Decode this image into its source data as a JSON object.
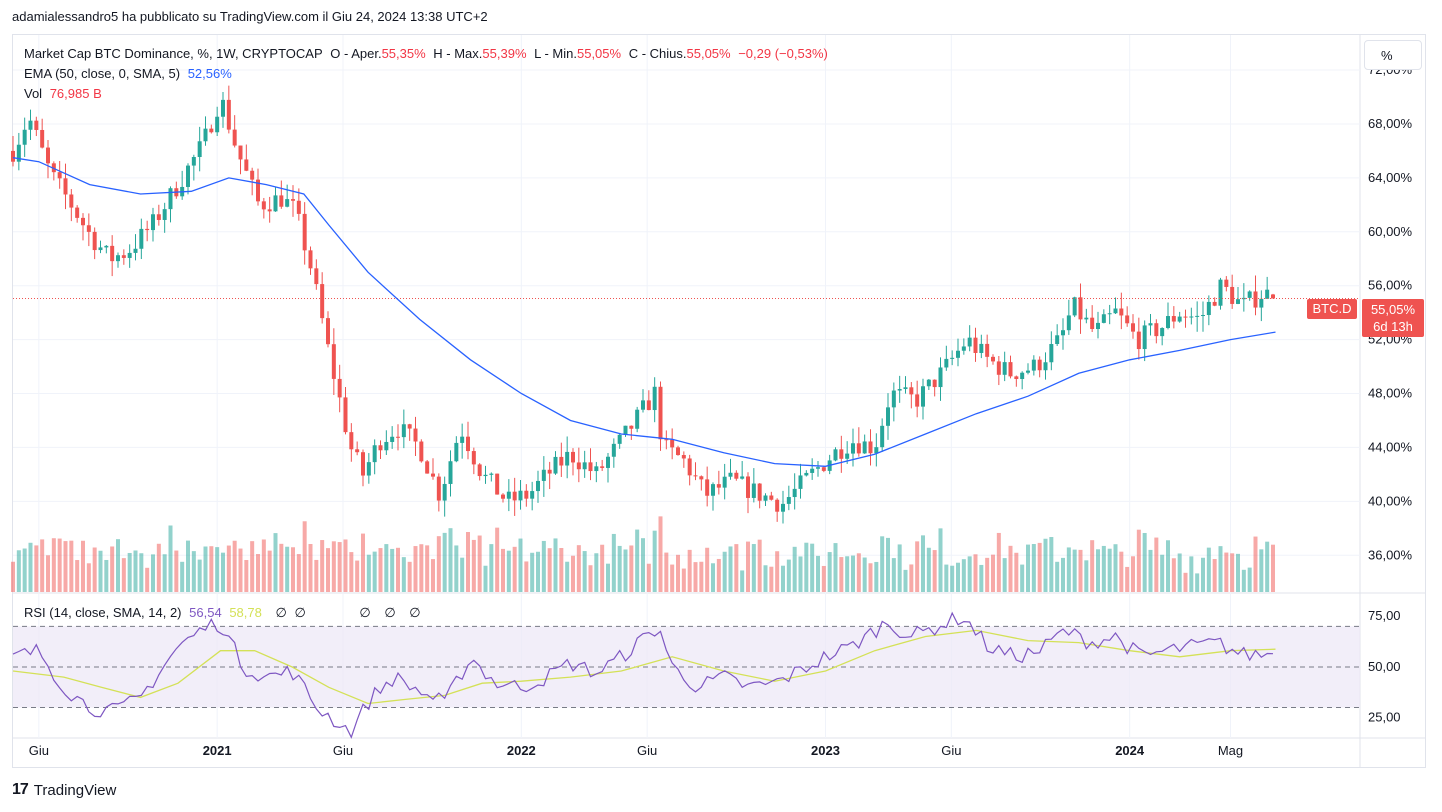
{
  "header": {
    "publisher_line": "adamialessandro5 ha pubblicato su TradingView.com il Giu 24, 2024 13:38 UTC+2"
  },
  "legend": {
    "main_title": "Market Cap BTC Dominance, %, 1W, CRYPTOCAP",
    "open_label": "O - Aper.",
    "open_value": "55,35%",
    "high_label": "H - Max.",
    "high_value": "55,39%",
    "low_label": "L - Min.",
    "low_value": "55,05%",
    "close_label": "C - Chius.",
    "close_value": "55,05%",
    "change": "−0,29 (−0,53%)",
    "ema_label": "EMA (50, close, 0, SMA, 5)",
    "ema_value": "52,56%",
    "vol_label": "Vol",
    "vol_value": "76,985 B"
  },
  "rsi_legend": {
    "label": "RSI (14, close, SMA, 14, 2)",
    "rsi_value": "56,54",
    "sma_value": "58,78",
    "empty_values": [
      "∅",
      "∅",
      "∅",
      "∅",
      "∅"
    ]
  },
  "scale_button": "%",
  "symbol_badge": "BTC.D",
  "price_badge": {
    "price": "55,05%",
    "countdown": "6d 13h"
  },
  "footer": {
    "brand": "TradingView",
    "logo_glyph": "17"
  },
  "colors": {
    "up": "#26a69a",
    "down": "#ef5350",
    "ema": "#2962ff",
    "rsi": "#7e57c2",
    "rsi_sma": "#d4e157",
    "rsi_band": "#ede7f6"
  },
  "chart_data": {
    "type": "candlestick",
    "timeframe": "1W",
    "y_axis": {
      "ticks": [
        72,
        68,
        64,
        60,
        56,
        52,
        48,
        44,
        40,
        36
      ],
      "tick_labels": [
        "72,00%",
        "68,00%",
        "64,00%",
        "60,00%",
        "56,00%",
        "52,00%",
        "48,00%",
        "44,00%",
        "40,00%",
        "36,00%"
      ],
      "range": [
        33.2,
        74.6
      ]
    },
    "x_axis": {
      "labels": [
        {
          "text": "Giu",
          "date": "2020-06",
          "bold": false
        },
        {
          "text": "2021",
          "date": "2021-01",
          "bold": true
        },
        {
          "text": "Giu",
          "date": "2021-06",
          "bold": false
        },
        {
          "text": "2022",
          "date": "2022-01",
          "bold": true
        },
        {
          "text": "Giu",
          "date": "2022-06",
          "bold": false
        },
        {
          "text": "2023",
          "date": "2023-01",
          "bold": true
        },
        {
          "text": "Giu",
          "date": "2023-06",
          "bold": false
        },
        {
          "text": "2024",
          "date": "2024-01",
          "bold": true
        },
        {
          "text": "Mag",
          "date": "2024-05",
          "bold": false
        }
      ],
      "range": [
        "2020-05-01",
        "2024-10-01"
      ]
    },
    "close_path": [
      [
        "2020-05-01",
        66.0
      ],
      [
        "2020-05-20",
        68.5
      ],
      [
        "2020-06-15",
        64.3
      ],
      [
        "2020-07-10",
        62.0
      ],
      [
        "2020-08-01",
        59.8
      ],
      [
        "2020-08-25",
        58.0
      ],
      [
        "2020-09-15",
        58.5
      ],
      [
        "2020-10-15",
        60.5
      ],
      [
        "2020-11-15",
        63.5
      ],
      [
        "2020-12-15",
        66.5
      ],
      [
        "2021-01-05",
        70.0
      ],
      [
        "2021-01-25",
        66.0
      ],
      [
        "2021-02-20",
        62.0
      ],
      [
        "2021-03-20",
        62.5
      ],
      [
        "2021-04-05",
        61.5
      ],
      [
        "2021-04-25",
        57.0
      ],
      [
        "2021-05-15",
        51.0
      ],
      [
        "2021-06-10",
        44.0
      ],
      [
        "2021-06-25",
        42.0
      ],
      [
        "2021-07-15",
        44.5
      ],
      [
        "2021-08-05",
        45.5
      ],
      [
        "2021-09-01",
        44.0
      ],
      [
        "2021-09-25",
        40.5
      ],
      [
        "2021-10-20",
        45.5
      ],
      [
        "2021-11-15",
        42.0
      ],
      [
        "2021-12-15",
        40.0
      ],
      [
        "2022-01-10",
        40.5
      ],
      [
        "2022-02-01",
        42.0
      ],
      [
        "2022-03-01",
        43.5
      ],
      [
        "2022-04-01",
        42.0
      ],
      [
        "2022-05-01",
        44.5
      ],
      [
        "2022-06-10",
        48.0
      ],
      [
        "2022-06-20",
        44.0
      ],
      [
        "2022-07-15",
        43.0
      ],
      [
        "2022-08-10",
        40.5
      ],
      [
        "2022-09-10",
        41.5
      ],
      [
        "2022-10-15",
        40.5
      ],
      [
        "2022-11-10",
        39.8
      ],
      [
        "2022-12-15",
        42.0
      ],
      [
        "2023-01-10",
        43.5
      ],
      [
        "2023-02-01",
        44.5
      ],
      [
        "2023-03-01",
        44.0
      ],
      [
        "2023-03-20",
        48.0
      ],
      [
        "2023-04-20",
        47.5
      ],
      [
        "2023-05-20",
        49.5
      ],
      [
        "2023-06-20",
        52.0
      ],
      [
        "2023-07-15",
        50.5
      ],
      [
        "2023-08-10",
        49.5
      ],
      [
        "2023-09-10",
        50.0
      ],
      [
        "2023-10-10",
        52.0
      ],
      [
        "2023-10-25",
        54.5
      ],
      [
        "2023-11-20",
        52.5
      ],
      [
        "2023-12-15",
        54.0
      ],
      [
        "2024-01-10",
        52.0
      ],
      [
        "2024-02-10",
        53.0
      ],
      [
        "2024-03-01",
        54.0
      ],
      [
        "2024-03-25",
        53.5
      ],
      [
        "2024-04-20",
        56.0
      ],
      [
        "2024-05-15",
        54.5
      ],
      [
        "2024-06-10",
        55.5
      ],
      [
        "2024-06-24",
        55.05
      ]
    ],
    "ema": {
      "name": "EMA (50, close, 0, SMA, 5)",
      "path": [
        [
          "2020-05-01",
          65.5
        ],
        [
          "2020-06-01",
          65.2
        ],
        [
          "2020-08-01",
          63.5
        ],
        [
          "2020-10-01",
          62.8
        ],
        [
          "2020-12-01",
          63.0
        ],
        [
          "2021-01-15",
          64.0
        ],
        [
          "2021-03-01",
          63.5
        ],
        [
          "2021-04-15",
          62.8
        ],
        [
          "2021-05-15",
          60.5
        ],
        [
          "2021-07-01",
          57.0
        ],
        [
          "2021-09-01",
          53.5
        ],
        [
          "2021-11-01",
          50.5
        ],
        [
          "2022-01-01",
          48.0
        ],
        [
          "2022-03-01",
          46.0
        ],
        [
          "2022-05-01",
          45.0
        ],
        [
          "2022-07-01",
          44.6
        ],
        [
          "2022-09-01",
          43.6
        ],
        [
          "2022-11-01",
          42.8
        ],
        [
          "2023-01-01",
          42.6
        ],
        [
          "2023-03-01",
          43.5
        ],
        [
          "2023-05-01",
          45.0
        ],
        [
          "2023-07-01",
          46.5
        ],
        [
          "2023-09-01",
          47.8
        ],
        [
          "2023-11-01",
          49.5
        ],
        [
          "2024-01-01",
          50.5
        ],
        [
          "2024-03-01",
          51.2
        ],
        [
          "2024-05-01",
          52.0
        ],
        [
          "2024-06-24",
          52.56
        ]
      ]
    },
    "volume": {
      "name": "Vol",
      "unit": "B"
    },
    "rsi": {
      "name": "RSI (14, close, SMA, 14, 2)",
      "y_ticks": [
        75,
        50,
        25
      ],
      "tick_labels": [
        "75,00",
        "50,00",
        "25,00"
      ],
      "bands": [
        30,
        50,
        70
      ],
      "range": [
        15,
        83
      ],
      "path": [
        [
          "2020-05-01",
          55
        ],
        [
          "2020-06-01",
          58
        ],
        [
          "2020-07-01",
          40
        ],
        [
          "2020-08-01",
          30
        ],
        [
          "2020-09-01",
          28
        ],
        [
          "2020-10-01",
          35
        ],
        [
          "2020-11-15",
          60
        ],
        [
          "2020-12-20",
          70
        ],
        [
          "2021-01-05",
          72
        ],
        [
          "2021-02-01",
          50
        ],
        [
          "2021-03-01",
          45
        ],
        [
          "2021-04-01",
          48
        ],
        [
          "2021-05-01",
          30
        ],
        [
          "2021-06-10",
          18
        ],
        [
          "2021-07-05",
          35
        ],
        [
          "2021-08-01",
          45
        ],
        [
          "2021-09-01",
          38
        ],
        [
          "2021-10-01",
          32
        ],
        [
          "2021-11-01",
          55
        ],
        [
          "2021-12-01",
          42
        ],
        [
          "2022-01-01",
          40
        ],
        [
          "2022-02-01",
          45
        ],
        [
          "2022-03-01",
          52
        ],
        [
          "2022-04-01",
          47
        ],
        [
          "2022-05-01",
          55
        ],
        [
          "2022-06-15",
          70
        ],
        [
          "2022-07-01",
          50
        ],
        [
          "2022-08-01",
          40
        ],
        [
          "2022-09-01",
          45
        ],
        [
          "2022-10-01",
          40
        ],
        [
          "2022-11-01",
          42
        ],
        [
          "2022-12-01",
          48
        ],
        [
          "2023-01-01",
          55
        ],
        [
          "2023-02-01",
          60
        ],
        [
          "2023-03-15",
          72
        ],
        [
          "2023-04-15",
          65
        ],
        [
          "2023-05-15",
          70
        ],
        [
          "2023-06-15",
          75
        ],
        [
          "2023-07-15",
          60
        ],
        [
          "2023-08-15",
          55
        ],
        [
          "2023-09-15",
          58
        ],
        [
          "2023-10-15",
          68
        ],
        [
          "2023-11-15",
          62
        ],
        [
          "2023-12-15",
          65
        ],
        [
          "2024-01-15",
          55
        ],
        [
          "2024-02-15",
          58
        ],
        [
          "2024-03-15",
          60
        ],
        [
          "2024-04-15",
          62
        ],
        [
          "2024-05-15",
          56
        ],
        [
          "2024-06-24",
          56.54
        ]
      ],
      "sma_path": [
        [
          "2020-05-01",
          48
        ],
        [
          "2020-07-01",
          45
        ],
        [
          "2020-08-15",
          40
        ],
        [
          "2020-10-01",
          35
        ],
        [
          "2020-11-15",
          42
        ],
        [
          "2021-01-05",
          58
        ],
        [
          "2021-02-15",
          58
        ],
        [
          "2021-04-01",
          50
        ],
        [
          "2021-05-15",
          40
        ],
        [
          "2021-07-01",
          32
        ],
        [
          "2021-08-15",
          34
        ],
        [
          "2021-10-01",
          36
        ],
        [
          "2021-11-15",
          42
        ],
        [
          "2022-01-01",
          43
        ],
        [
          "2022-03-01",
          45
        ],
        [
          "2022-05-01",
          48
        ],
        [
          "2022-07-01",
          55
        ],
        [
          "2022-09-01",
          48
        ],
        [
          "2022-11-01",
          43
        ],
        [
          "2023-01-01",
          48
        ],
        [
          "2023-03-01",
          58
        ],
        [
          "2023-05-01",
          65
        ],
        [
          "2023-07-01",
          68
        ],
        [
          "2023-09-01",
          63
        ],
        [
          "2023-11-01",
          62
        ],
        [
          "2024-01-01",
          58
        ],
        [
          "2024-03-01",
          55
        ],
        [
          "2024-05-01",
          58
        ],
        [
          "2024-06-24",
          58.78
        ]
      ]
    }
  }
}
